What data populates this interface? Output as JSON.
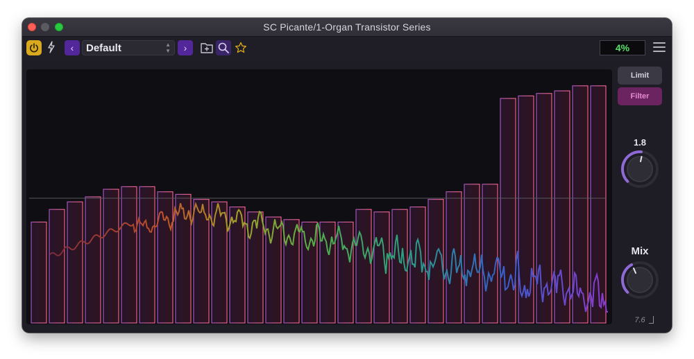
{
  "window": {
    "title": "SC Picante/1-Organ Transistor Series"
  },
  "toolbar": {
    "power_icon": "power-icon",
    "bolt_icon": "lightning-bolt-icon",
    "prev_label": "‹",
    "next_label": "›",
    "preset_name": "Default",
    "save_icon": "folder-plus-icon",
    "search_icon": "search-icon",
    "favorite_icon": "star-icon",
    "cpu_meter": "4%",
    "menu_icon": "hamburger-menu-icon"
  },
  "side_panel": {
    "limit_label": "Limit",
    "filter_label": "Filter",
    "knob1_value": "1.8",
    "knob2_label": "Mix",
    "readout": "7.6"
  },
  "colors": {
    "accent_purple": "#51279a",
    "power_yellow": "#d9a91e",
    "cpu_green": "#57e36b",
    "filter_active": "#6b2460"
  },
  "display": {
    "bar_levels": [
      0.4,
      0.45,
      0.48,
      0.5,
      0.53,
      0.54,
      0.54,
      0.52,
      0.51,
      0.49,
      0.48,
      0.46,
      0.44,
      0.42,
      0.41,
      0.4,
      0.4,
      0.4,
      0.45,
      0.44,
      0.45,
      0.46,
      0.49,
      0.52,
      0.55,
      0.55,
      0.89,
      0.9,
      0.91,
      0.92,
      0.94,
      0.94
    ]
  }
}
